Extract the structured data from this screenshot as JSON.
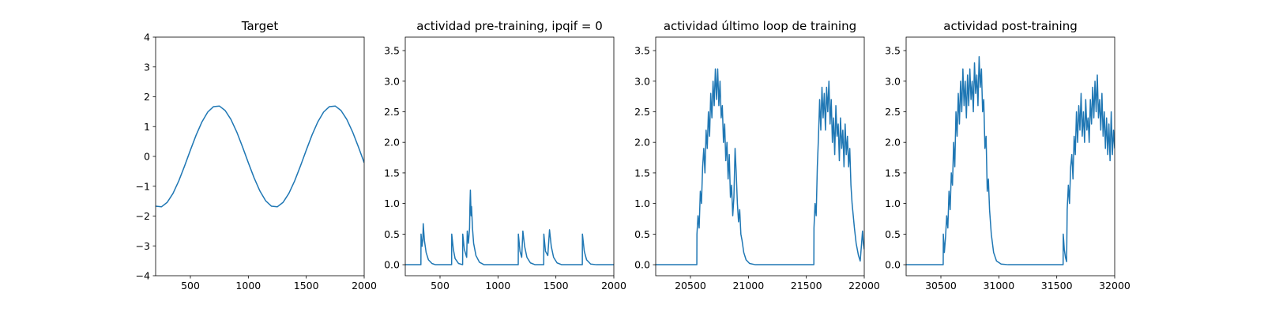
{
  "chart_data": [
    {
      "type": "line",
      "title": "Target",
      "color": "#1f77b4",
      "x": [
        200,
        250,
        300,
        350,
        400,
        450,
        500,
        550,
        600,
        650,
        700,
        750,
        800,
        850,
        900,
        950,
        1000,
        1050,
        1100,
        1150,
        1200,
        1250,
        1300,
        1350,
        1400,
        1450,
        1500,
        1550,
        1600,
        1650,
        1700,
        1750,
        1800,
        1850,
        1900,
        1950,
        2000
      ],
      "values": [
        -1.67,
        -1.69,
        -1.54,
        -1.24,
        -0.82,
        -0.32,
        0.21,
        0.72,
        1.16,
        1.49,
        1.67,
        1.69,
        1.54,
        1.24,
        0.82,
        0.32,
        -0.21,
        -0.72,
        -1.16,
        -1.49,
        -1.67,
        -1.69,
        -1.54,
        -1.24,
        -0.82,
        -0.32,
        0.21,
        0.72,
        1.16,
        1.49,
        1.67,
        1.69,
        1.54,
        1.24,
        0.82,
        0.32,
        -0.21
      ],
      "xlim": [
        200,
        2000
      ],
      "ylim": [
        -4,
        4
      ],
      "xticks": [
        500,
        1000,
        1500,
        2000
      ],
      "yticks": [
        {
          "value": -4,
          "label": "−4"
        },
        {
          "value": -3,
          "label": "−3"
        },
        {
          "value": -2,
          "label": "−2"
        },
        {
          "value": -1,
          "label": "−1"
        },
        0,
        1,
        2,
        3,
        4
      ]
    },
    {
      "type": "line",
      "title": "actividad pre-training, ipqif = 0",
      "color": "#1f77b4",
      "x": [
        200,
        335,
        336,
        345,
        352,
        355,
        365,
        380,
        400,
        430,
        460,
        600,
        601,
        615,
        630,
        660,
        695,
        696,
        710,
        730,
        735,
        745,
        755,
        758,
        762,
        768,
        772,
        780,
        790,
        810,
        840,
        880,
        1175,
        1176,
        1190,
        1205,
        1215,
        1230,
        1250,
        1280,
        1320,
        1395,
        1396,
        1410,
        1430,
        1445,
        1460,
        1480,
        1510,
        1550,
        1728,
        1729,
        1745,
        1765,
        1800,
        1850,
        2000
      ],
      "values": [
        0,
        0,
        0.5,
        0.3,
        0.42,
        0.67,
        0.4,
        0.2,
        0.08,
        0.02,
        0,
        0,
        0.5,
        0.25,
        0.1,
        0.02,
        0,
        0.5,
        0.25,
        0.12,
        0.55,
        0.35,
        0.6,
        0.95,
        1.22,
        0.8,
        0.95,
        0.6,
        0.35,
        0.15,
        0.04,
        0,
        0,
        0.5,
        0.22,
        0.12,
        0.55,
        0.3,
        0.12,
        0.03,
        0,
        0,
        0.5,
        0.22,
        0.15,
        0.57,
        0.3,
        0.12,
        0.03,
        0,
        0,
        0.5,
        0.22,
        0.08,
        0.01,
        0,
        0
      ],
      "xlim": [
        200,
        2000
      ],
      "ylim": [
        -0.18,
        3.72
      ],
      "xticks": [
        500,
        1000,
        1500,
        2000
      ],
      "yticks": [
        {
          "value": 0,
          "label": "0.0"
        },
        0.5,
        {
          "value": 1,
          "label": "1.0"
        },
        1.5,
        {
          "value": 2,
          "label": "2.0"
        },
        2.5,
        {
          "value": 3,
          "label": "3.0"
        },
        3.5
      ]
    },
    {
      "type": "line",
      "title": "actividad último loop de training",
      "color": "#1f77b4",
      "x": [
        20200,
        20555,
        20556,
        20565,
        20575,
        20585,
        20595,
        20605,
        20615,
        20625,
        20635,
        20645,
        20655,
        20665,
        20675,
        20685,
        20695,
        20705,
        20715,
        20725,
        20735,
        20745,
        20755,
        20765,
        20775,
        20785,
        20795,
        20805,
        20815,
        20825,
        20835,
        20845,
        20855,
        20865,
        20875,
        20885,
        20895,
        20905,
        20915,
        20925,
        20935,
        20945,
        20960,
        20980,
        21010,
        21060,
        21565,
        21566,
        21575,
        21585,
        21595,
        21605,
        21615,
        21625,
        21635,
        21645,
        21655,
        21665,
        21675,
        21685,
        21695,
        21705,
        21715,
        21725,
        21735,
        21745,
        21755,
        21765,
        21775,
        21785,
        21795,
        21805,
        21815,
        21825,
        21835,
        21845,
        21855,
        21865,
        21875,
        21885,
        21895,
        21905,
        21915,
        21930,
        21950,
        21965,
        21975,
        21985,
        21992,
        22000
      ],
      "values": [
        0,
        0,
        0.5,
        0.8,
        0.6,
        1.2,
        1.0,
        1.6,
        1.9,
        1.5,
        2.2,
        1.9,
        2.5,
        2.1,
        2.8,
        2.4,
        3.0,
        2.6,
        3.2,
        2.7,
        3.2,
        2.6,
        3.0,
        2.4,
        2.6,
        2.0,
        2.3,
        1.7,
        2.0,
        1.4,
        1.8,
        1.1,
        1.3,
        0.8,
        1.1,
        1.9,
        1.5,
        1.0,
        0.7,
        0.9,
        0.5,
        0.4,
        0.2,
        0.08,
        0.02,
        0,
        0,
        0.6,
        1.0,
        0.8,
        1.6,
        2.1,
        2.7,
        2.2,
        2.9,
        2.4,
        2.8,
        2.2,
        2.9,
        2.5,
        3.0,
        2.3,
        2.7,
        2.0,
        2.4,
        1.8,
        2.6,
        2.1,
        2.3,
        1.7,
        2.4,
        1.9,
        2.2,
        1.6,
        2.3,
        1.8,
        2.1,
        1.6,
        1.9,
        1.3,
        1.0,
        0.8,
        0.6,
        0.35,
        0.15,
        0.06,
        0.3,
        0.55,
        0.35,
        0.25
      ],
      "xlim": [
        20200,
        22000
      ],
      "ylim": [
        -0.18,
        3.72
      ],
      "xticks": [
        20500,
        21000,
        21500,
        22000
      ],
      "yticks": [
        {
          "value": 0,
          "label": "0.0"
        },
        0.5,
        {
          "value": 1,
          "label": "1.0"
        },
        1.5,
        {
          "value": 2,
          "label": "2.0"
        },
        2.5,
        {
          "value": 3,
          "label": "3.0"
        },
        3.5
      ]
    },
    {
      "type": "line",
      "title": "actividad post-training",
      "color": "#1f77b4",
      "x": [
        30200,
        30520,
        30521,
        30530,
        30540,
        30550,
        30560,
        30570,
        30580,
        30590,
        30600,
        30610,
        30620,
        30630,
        30640,
        30650,
        30660,
        30670,
        30680,
        30690,
        30700,
        30710,
        30720,
        30730,
        30740,
        30750,
        30760,
        30770,
        30780,
        30790,
        30800,
        30810,
        30820,
        30830,
        30840,
        30850,
        30860,
        30870,
        30880,
        30890,
        30900,
        30910,
        30920,
        30935,
        30955,
        30980,
        31020,
        31080,
        31555,
        31556,
        31565,
        31575,
        31585,
        31590,
        31600,
        31610,
        31620,
        31630,
        31640,
        31650,
        31660,
        31670,
        31680,
        31690,
        31700,
        31710,
        31720,
        31730,
        31740,
        31750,
        31760,
        31770,
        31780,
        31790,
        31800,
        31810,
        31820,
        31830,
        31840,
        31850,
        31860,
        31870,
        31880,
        31890,
        31900,
        31910,
        31920,
        31930,
        31940,
        31950,
        31960,
        31970,
        31980,
        31990,
        32000
      ],
      "values": [
        0,
        0,
        0.5,
        0.2,
        0.45,
        0.8,
        0.6,
        1.2,
        0.9,
        1.5,
        1.3,
        2.0,
        1.6,
        2.5,
        2.1,
        2.8,
        2.3,
        3.0,
        2.5,
        3.2,
        2.6,
        3.0,
        2.4,
        3.1,
        2.6,
        3.2,
        2.7,
        3.0,
        2.5,
        3.3,
        2.8,
        3.1,
        2.6,
        3.4,
        2.9,
        3.2,
        2.5,
        2.7,
        1.9,
        2.1,
        1.2,
        1.4,
        0.9,
        0.5,
        0.2,
        0.06,
        0.01,
        0,
        0,
        0.5,
        0.25,
        0.12,
        0.05,
        0.9,
        1.3,
        1.0,
        1.6,
        1.8,
        1.4,
        2.1,
        1.8,
        2.5,
        2.0,
        2.6,
        2.2,
        2.8,
        2.1,
        2.5,
        2.0,
        2.7,
        2.2,
        2.4,
        2.0,
        2.7,
        2.3,
        2.9,
        2.4,
        3.0,
        2.5,
        3.1,
        2.4,
        2.7,
        2.2,
        2.8,
        2.1,
        2.5,
        1.9,
        2.4,
        1.8,
        2.3,
        1.7,
        2.5,
        1.8,
        2.2,
        1.9
      ],
      "xlim": [
        30200,
        32000
      ],
      "ylim": [
        -0.18,
        3.72
      ],
      "xticks": [
        30500,
        31000,
        31500,
        32000
      ],
      "yticks": [
        {
          "value": 0,
          "label": "0.0"
        },
        0.5,
        {
          "value": 1,
          "label": "1.0"
        },
        1.5,
        {
          "value": 2,
          "label": "2.0"
        },
        2.5,
        {
          "value": 3,
          "label": "3.0"
        },
        3.5
      ]
    }
  ]
}
